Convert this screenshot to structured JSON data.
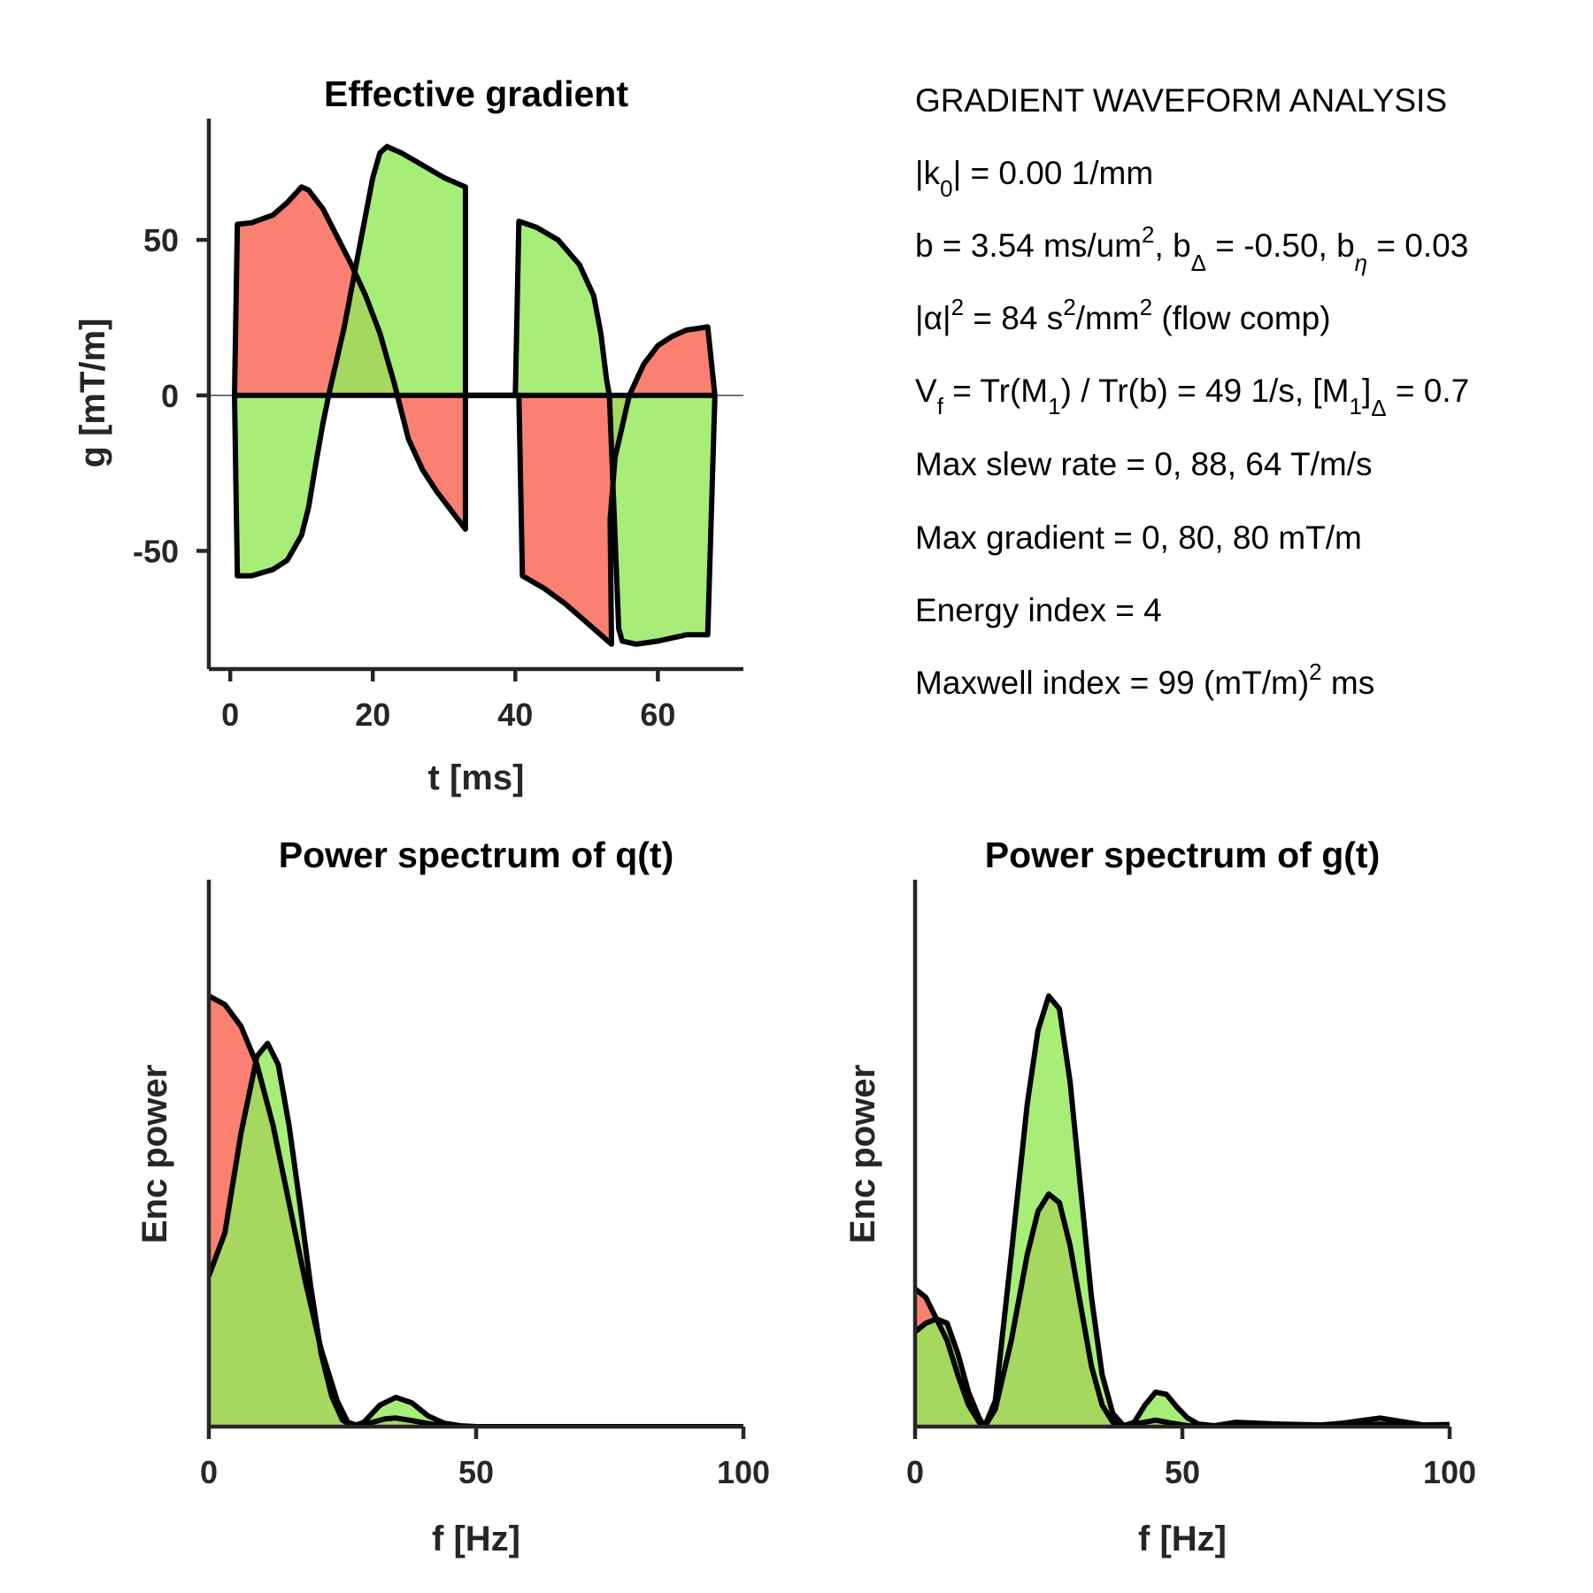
{
  "colors": {
    "red": "#FA8072",
    "green": "#94EA5C",
    "overlap": "#DC7F42",
    "axis": "#262626",
    "outline": "#000000"
  },
  "chart_data": [
    {
      "id": "gradient",
      "type": "area",
      "title": "Effective gradient",
      "xlabel": "t [ms]",
      "ylabel": "g [mT/m]",
      "xlim": [
        -3,
        72
      ],
      "ylim": [
        -88,
        89
      ],
      "xticks": [
        0,
        20,
        40,
        60
      ],
      "yticks": [
        -50,
        0,
        50
      ],
      "zero_line": true,
      "series": [
        {
          "color": "red",
          "points": [
            [
              0.6,
              0
            ],
            [
              1,
              55
            ],
            [
              3,
              55.5
            ],
            [
              6,
              58
            ],
            [
              8,
              62
            ],
            [
              10,
              67
            ],
            [
              11,
              66
            ],
            [
              13,
              60
            ],
            [
              15,
              51
            ],
            [
              17,
              42
            ],
            [
              19,
              32
            ],
            [
              21,
              20
            ],
            [
              22,
              12
            ],
            [
              23,
              4
            ],
            [
              25,
              -14
            ],
            [
              27,
              -24
            ],
            [
              29,
              -31
            ],
            [
              31,
              -37
            ],
            [
              33,
              -43
            ],
            [
              33,
              0
            ],
            [
              40.5,
              0
            ],
            [
              41,
              -58
            ],
            [
              44,
              -62
            ],
            [
              47,
              -67
            ],
            [
              50,
              -73
            ],
            [
              52,
              -77
            ],
            [
              53.5,
              -80
            ],
            [
              53.3,
              -40
            ],
            [
              54,
              -20
            ],
            [
              56,
              0
            ],
            [
              58,
              10
            ],
            [
              60,
              16
            ],
            [
              62,
              19
            ],
            [
              64,
              21
            ],
            [
              67,
              22
            ],
            [
              68,
              0
            ]
          ]
        },
        {
          "color": "green",
          "points": [
            [
              0.6,
              0
            ],
            [
              1,
              -58
            ],
            [
              3,
              -58
            ],
            [
              6,
              -56
            ],
            [
              8,
              -53
            ],
            [
              10,
              -45
            ],
            [
              11,
              -36
            ],
            [
              12,
              -22
            ],
            [
              13,
              -9
            ],
            [
              14,
              2
            ],
            [
              16,
              22
            ],
            [
              18,
              46
            ],
            [
              20,
              70
            ],
            [
              21,
              78
            ],
            [
              22,
              80
            ],
            [
              24,
              78
            ],
            [
              27,
              74
            ],
            [
              30,
              70
            ],
            [
              33,
              67
            ],
            [
              33,
              0
            ],
            [
              40,
              0
            ],
            [
              40.5,
              56
            ],
            [
              43,
              54
            ],
            [
              46,
              50
            ],
            [
              49,
              42
            ],
            [
              51,
              32
            ],
            [
              52,
              20
            ],
            [
              52.8,
              5
            ],
            [
              53.2,
              0
            ],
            [
              54.5,
              -75
            ],
            [
              55,
              -79
            ],
            [
              57,
              -80
            ],
            [
              60,
              -79
            ],
            [
              64,
              -77
            ],
            [
              67,
              -77
            ],
            [
              68,
              0
            ]
          ]
        }
      ]
    },
    {
      "id": "q_spectrum",
      "type": "area",
      "title": "Power spectrum of q(t)",
      "xlabel": "f [Hz]",
      "ylabel": "Enc power",
      "xlim": [
        0,
        100
      ],
      "ylim": [
        0,
        1.27
      ],
      "xticks": [
        0,
        50,
        100
      ],
      "series": [
        {
          "color": "red",
          "points": [
            [
              0,
              1.0
            ],
            [
              3,
              0.98
            ],
            [
              6,
              0.93
            ],
            [
              9,
              0.84
            ],
            [
              12,
              0.7
            ],
            [
              15,
              0.52
            ],
            [
              18,
              0.34
            ],
            [
              21,
              0.18
            ],
            [
              24,
              0.06
            ],
            [
              26,
              0.01
            ],
            [
              28,
              0.002
            ],
            [
              30,
              0.008
            ],
            [
              33,
              0.018
            ],
            [
              35,
              0.02
            ],
            [
              38,
              0.014
            ],
            [
              42,
              0.005
            ],
            [
              46,
              0.001
            ],
            [
              50,
              0
            ],
            [
              100,
              0
            ]
          ]
        },
        {
          "color": "green",
          "points": [
            [
              0,
              0.35
            ],
            [
              3,
              0.45
            ],
            [
              6,
              0.68
            ],
            [
              9,
              0.86
            ],
            [
              11,
              0.89
            ],
            [
              13,
              0.84
            ],
            [
              15,
              0.7
            ],
            [
              17,
              0.52
            ],
            [
              19,
              0.33
            ],
            [
              21,
              0.17
            ],
            [
              23,
              0.07
            ],
            [
              25,
              0.015
            ],
            [
              27,
              0.001
            ],
            [
              29,
              0.01
            ],
            [
              32,
              0.05
            ],
            [
              35,
              0.068
            ],
            [
              38,
              0.055
            ],
            [
              41,
              0.025
            ],
            [
              44,
              0.008
            ],
            [
              47,
              0.002
            ],
            [
              50,
              0
            ],
            [
              100,
              0
            ]
          ]
        }
      ]
    },
    {
      "id": "g_spectrum",
      "type": "area",
      "title": "Power spectrum of g(t)",
      "xlabel": "f [Hz]",
      "ylabel": "Enc power",
      "xlim": [
        0,
        100
      ],
      "ylim": [
        0,
        1.27
      ],
      "xticks": [
        0,
        50,
        100
      ],
      "series": [
        {
          "color": "red",
          "points": [
            [
              0,
              0.32
            ],
            [
              2,
              0.3
            ],
            [
              4,
              0.25
            ],
            [
              6,
              0.2
            ],
            [
              8,
              0.12
            ],
            [
              10,
              0.05
            ],
            [
              12,
              0.01
            ],
            [
              13,
              0
            ],
            [
              15,
              0.04
            ],
            [
              18,
              0.2
            ],
            [
              21,
              0.4
            ],
            [
              23,
              0.5
            ],
            [
              25,
              0.54
            ],
            [
              27,
              0.52
            ],
            [
              29,
              0.42
            ],
            [
              31,
              0.28
            ],
            [
              33,
              0.14
            ],
            [
              35,
              0.05
            ],
            [
              37,
              0.01
            ],
            [
              39,
              0
            ],
            [
              42,
              0.008
            ],
            [
              45,
              0.015
            ],
            [
              48,
              0.008
            ],
            [
              51,
              0.002
            ],
            [
              55,
              0
            ],
            [
              60,
              0.003
            ],
            [
              70,
              0.003
            ],
            [
              80,
              0.003
            ],
            [
              87,
              0.006
            ],
            [
              93,
              0.002
            ],
            [
              100,
              0.003
            ]
          ]
        },
        {
          "color": "green",
          "points": [
            [
              0,
              0.22
            ],
            [
              2,
              0.24
            ],
            [
              4,
              0.25
            ],
            [
              6,
              0.24
            ],
            [
              8,
              0.17
            ],
            [
              10,
              0.08
            ],
            [
              12,
              0.02
            ],
            [
              13,
              0
            ],
            [
              15,
              0.06
            ],
            [
              18,
              0.4
            ],
            [
              21,
              0.75
            ],
            [
              23,
              0.92
            ],
            [
              25,
              1.0
            ],
            [
              27,
              0.97
            ],
            [
              29,
              0.8
            ],
            [
              31,
              0.55
            ],
            [
              33,
              0.3
            ],
            [
              35,
              0.12
            ],
            [
              37,
              0.03
            ],
            [
              39,
              0.002
            ],
            [
              41,
              0.01
            ],
            [
              43,
              0.05
            ],
            [
              45,
              0.08
            ],
            [
              47,
              0.075
            ],
            [
              49,
              0.045
            ],
            [
              51,
              0.02
            ],
            [
              53,
              0.006
            ],
            [
              56,
              0.002
            ],
            [
              60,
              0.01
            ],
            [
              64,
              0.008
            ],
            [
              68,
              0.006
            ],
            [
              72,
              0.005
            ],
            [
              76,
              0.004
            ],
            [
              80,
              0.008
            ],
            [
              84,
              0.015
            ],
            [
              87,
              0.02
            ],
            [
              91,
              0.012
            ],
            [
              95,
              0.004
            ],
            [
              100,
              0.005
            ]
          ]
        }
      ]
    }
  ],
  "info_panel": {
    "header": "GRADIENT WAVEFORM ANALYSIS",
    "k0": {
      "a": "|k",
      "sub": "0",
      "b": "| = 0.00 1/mm"
    },
    "b_line": {
      "a": "b = 3.54 ms/um",
      "sup": "2",
      "b": ", b",
      "sub1": "Δ",
      "c": " = -0.50, b",
      "sub2": "η",
      "d": " = 0.03"
    },
    "alpha": {
      "a": "|α|",
      "sup1": "2",
      "b": " = 84 s",
      "sup2": "2",
      "c": "/mm",
      "sup3": "2",
      "d": " (flow comp)"
    },
    "vf": {
      "a": "V",
      "sub1": "f",
      "b": " = Tr(M",
      "sub2": "1",
      "c": ") / Tr(b) =  49 1/s, [M",
      "sub3": "1",
      "d": "]",
      "sub4": "Δ",
      "e": " = 0.7"
    },
    "slew": "Max slew rate =  0, 88, 64 T/m/s",
    "gmax": "Max gradient =  0, 80, 80 mT/m",
    "energy": "Energy index =  4",
    "maxwell": {
      "a": "Maxwell index = 99 (mT/m)",
      "sup": "2",
      "b": " ms"
    }
  }
}
